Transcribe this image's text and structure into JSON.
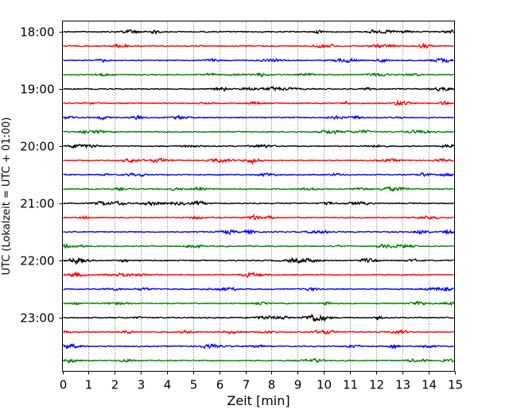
{
  "chart_data": {
    "type": "line",
    "xlabel": "Zeit  [min]",
    "ylabel": "UTC (Lokalzeit = UTC + 01:00)",
    "xlim": [
      0,
      15
    ],
    "x_ticks": [
      "0",
      "1",
      "2",
      "3",
      "4",
      "5",
      "6",
      "7",
      "8",
      "9",
      "10",
      "11",
      "12",
      "13",
      "14",
      "15"
    ],
    "y_ticks": [
      "18:00",
      "19:00",
      "20:00",
      "21:00",
      "22:00",
      "23:00"
    ],
    "grid": "vertical dotted",
    "trace_colors": [
      "#000000",
      "#ff0000",
      "#0000ff",
      "#008000"
    ],
    "series": [
      {
        "time": "18:00",
        "color": "#000000"
      },
      {
        "time": "18:15",
        "color": "#ff0000"
      },
      {
        "time": "18:30",
        "color": "#0000ff"
      },
      {
        "time": "18:45",
        "color": "#008000"
      },
      {
        "time": "19:00",
        "color": "#000000"
      },
      {
        "time": "19:15",
        "color": "#ff0000"
      },
      {
        "time": "19:30",
        "color": "#0000ff"
      },
      {
        "time": "19:45",
        "color": "#008000"
      },
      {
        "time": "20:00",
        "color": "#000000"
      },
      {
        "time": "20:15",
        "color": "#ff0000"
      },
      {
        "time": "20:30",
        "color": "#0000ff"
      },
      {
        "time": "20:45",
        "color": "#008000"
      },
      {
        "time": "21:00",
        "color": "#000000"
      },
      {
        "time": "21:15",
        "color": "#ff0000"
      },
      {
        "time": "21:30",
        "color": "#0000ff"
      },
      {
        "time": "21:45",
        "color": "#008000"
      },
      {
        "time": "22:00",
        "color": "#000000"
      },
      {
        "time": "22:15",
        "color": "#ff0000"
      },
      {
        "time": "22:30",
        "color": "#0000ff"
      },
      {
        "time": "22:45",
        "color": "#008000"
      },
      {
        "time": "23:00",
        "color": "#000000"
      },
      {
        "time": "23:15",
        "color": "#ff0000"
      },
      {
        "time": "23:30",
        "color": "#0000ff"
      },
      {
        "time": "23:45",
        "color": "#008000"
      }
    ]
  }
}
